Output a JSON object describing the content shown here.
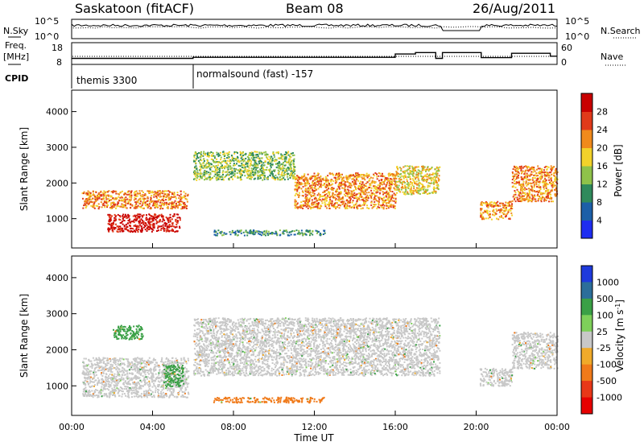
{
  "header": {
    "site": "Saskatoon (fitACF)",
    "beam": "Beam 08",
    "date": "26/Aug/2011"
  },
  "top_panels": {
    "nsky_label": "N.Sky",
    "nsky_ticks": [
      "10^5",
      "10^0"
    ],
    "nsearch_label": "N.Search",
    "nsearch_ticks": [
      "10^5",
      "10^0"
    ],
    "freq_label_1": "Freq.",
    "freq_label_2": "[MHz]",
    "freq_ticks": [
      "18",
      "8"
    ],
    "nave_label": "Nave",
    "nave_ticks": [
      "60",
      "0"
    ],
    "cpid_label": "CPID",
    "cpid_entries": [
      {
        "time": "00:00",
        "text": "themis 3300"
      },
      {
        "time": "06:00",
        "text": "normalsound (fast) -157"
      }
    ],
    "freq_levels": [
      {
        "from": "00:00",
        "to": "06:00",
        "value_mhz": 10.5
      },
      {
        "from": "06:00",
        "to": "16:00",
        "value_mhz": 11.2
      },
      {
        "from": "16:00",
        "to": "17:00",
        "value_mhz": 13.5
      },
      {
        "from": "17:00",
        "to": "18:00",
        "value_mhz": 14.5
      },
      {
        "from": "18:00",
        "to": "18:20",
        "value_mhz": 10.5
      },
      {
        "from": "18:20",
        "to": "20:15",
        "value_mhz": 14.5
      },
      {
        "from": "20:15",
        "to": "21:45",
        "value_mhz": 11.0
      },
      {
        "from": "21:45",
        "to": "23:40",
        "value_mhz": 14.0
      },
      {
        "from": "23:40",
        "to": "24:00",
        "value_mhz": 12.0
      }
    ]
  },
  "chart_data": [
    {
      "type": "heatmap",
      "title": "",
      "ylabel": "Slant Range [km]",
      "xlabel": "",
      "x_range": [
        "00:00",
        "24:00"
      ],
      "ylim": [
        180,
        4600
      ],
      "y_ticks": [
        "1000",
        "2000",
        "3000",
        "4000"
      ],
      "colorbar": {
        "label": "Power [dB]",
        "ticks": [
          "4",
          "8",
          "12",
          "16",
          "20",
          "24",
          "28"
        ],
        "colors": [
          "#1e2df0",
          "#1c5fa8",
          "#2f8a5c",
          "#8fc24a",
          "#f2d22a",
          "#f08a1c",
          "#e03a1a",
          "#c80000"
        ]
      },
      "echo_regions": [
        {
          "t_start": "00:30",
          "t_end": "05:45",
          "range_km": [
            1300,
            1800
          ],
          "power_db": 18
        },
        {
          "t_start": "01:45",
          "t_end": "05:20",
          "range_km": [
            650,
            1150
          ],
          "power_db": 26
        },
        {
          "t_start": "06:00",
          "t_end": "11:00",
          "range_km": [
            2100,
            2900
          ],
          "power_db": 10
        },
        {
          "t_start": "07:00",
          "t_end": "12:30",
          "range_km": [
            550,
            700
          ],
          "power_db": 8
        },
        {
          "t_start": "11:00",
          "t_end": "16:00",
          "range_km": [
            1300,
            2300
          ],
          "power_db": 18
        },
        {
          "t_start": "16:00",
          "t_end": "18:10",
          "range_km": [
            1700,
            2500
          ],
          "power_db": 14
        },
        {
          "t_start": "20:10",
          "t_end": "21:45",
          "range_km": [
            1000,
            1500
          ],
          "power_db": 18
        },
        {
          "t_start": "21:45",
          "t_end": "24:00",
          "range_km": [
            1500,
            2500
          ],
          "power_db": 18
        }
      ]
    },
    {
      "type": "heatmap",
      "title": "",
      "ylabel": "Slant Range [km]",
      "xlabel": "Time UT",
      "x_range": [
        "00:00",
        "24:00"
      ],
      "ylim": [
        180,
        4600
      ],
      "x_ticks": [
        "00:00",
        "04:00",
        "08:00",
        "12:00",
        "16:00",
        "20:00",
        "00:00"
      ],
      "y_ticks": [
        "1000",
        "2000",
        "3000",
        "4000"
      ],
      "colorbar": {
        "label": "Velocity [m s",
        "label_sup": "-1",
        "label_end": "]",
        "ticks": [
          "1000",
          "500",
          "100",
          "25",
          "-25",
          "-100",
          "-500",
          "-1000"
        ],
        "colors": [
          "#1e3adc",
          "#2c6e9a",
          "#3aa046",
          "#7ed05a",
          "#c8c8c8",
          "#f0aa2a",
          "#f07a1a",
          "#e83818",
          "#e60000"
        ]
      },
      "echo_regions": [
        {
          "t_start": "00:30",
          "t_end": "05:45",
          "range_km": [
            700,
            1800
          ],
          "velocity_ms": 0
        },
        {
          "t_start": "02:00",
          "t_end": "03:30",
          "range_km": [
            2300,
            2700
          ],
          "velocity_ms": 120
        },
        {
          "t_start": "04:30",
          "t_end": "05:30",
          "range_km": [
            1000,
            1600
          ],
          "velocity_ms": 120
        },
        {
          "t_start": "06:00",
          "t_end": "18:10",
          "range_km": [
            1300,
            2900
          ],
          "velocity_ms": 0
        },
        {
          "t_start": "07:00",
          "t_end": "12:30",
          "range_km": [
            550,
            700
          ],
          "velocity_ms": -150
        },
        {
          "t_start": "20:10",
          "t_end": "21:45",
          "range_km": [
            1000,
            1500
          ],
          "velocity_ms": 0
        },
        {
          "t_start": "21:45",
          "t_end": "24:00",
          "range_km": [
            1500,
            2500
          ],
          "velocity_ms": 0
        }
      ]
    }
  ]
}
